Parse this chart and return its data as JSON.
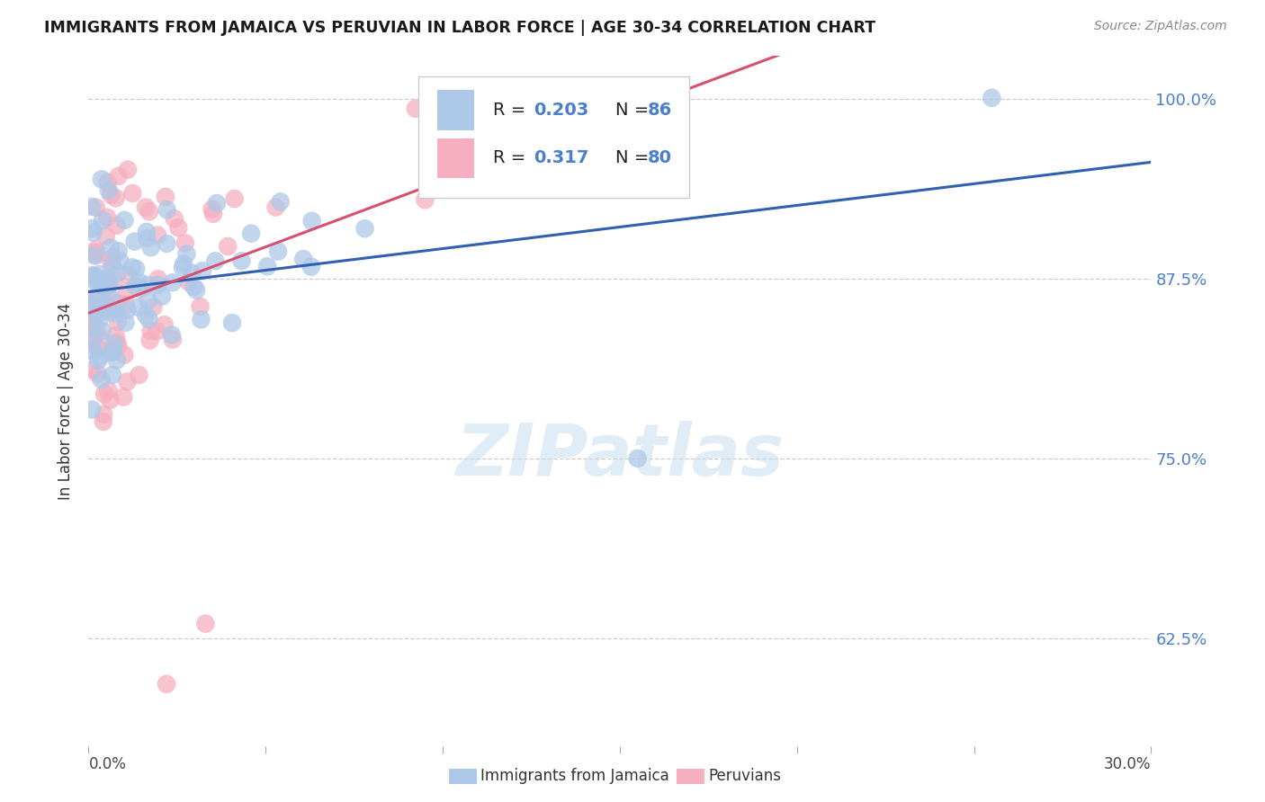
{
  "title": "IMMIGRANTS FROM JAMAICA VS PERUVIAN IN LABOR FORCE | AGE 30-34 CORRELATION CHART",
  "source": "Source: ZipAtlas.com",
  "ylabel": "In Labor Force | Age 30-34",
  "xmin": 0.0,
  "xmax": 0.3,
  "ymin": 0.55,
  "ymax": 1.03,
  "yticks": [
    0.625,
    0.75,
    0.875,
    1.0
  ],
  "ytick_labels": [
    "62.5%",
    "75.0%",
    "87.5%",
    "100.0%"
  ],
  "xticks": [
    0.0,
    0.05,
    0.1,
    0.15,
    0.2,
    0.25,
    0.3
  ],
  "legend_r_jamaica": "0.203",
  "legend_n_jamaica": "86",
  "legend_r_peruvian": "0.317",
  "legend_n_peruvian": "80",
  "watermark": "ZIPatlas",
  "jamaica_color": "#adc8e8",
  "peruvian_color": "#f5afc0",
  "jamaica_line_color": "#3060b0",
  "peruvian_line_color": "#d85070",
  "background_color": "#ffffff",
  "grid_color": "#cccccc",
  "right_label_color": "#4a7fcc"
}
